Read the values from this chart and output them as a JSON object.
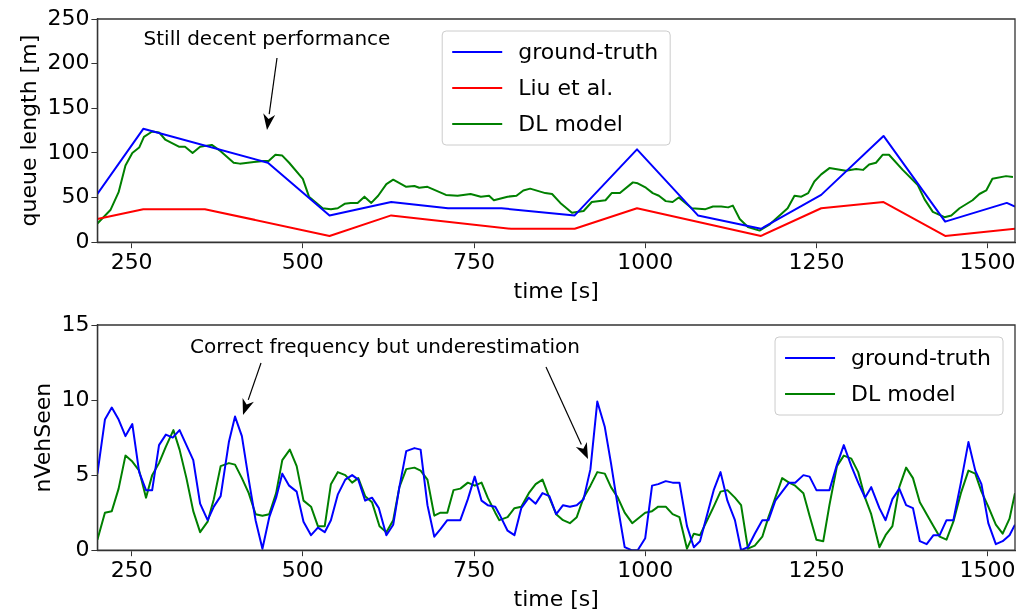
{
  "chart_data": [
    {
      "type": "line",
      "xlabel": "time [s]",
      "ylabel": "queue length [m]",
      "xlim": [
        200,
        1540
      ],
      "xticks": [
        250,
        500,
        750,
        1000,
        1250,
        1500
      ],
      "ylim": [
        0,
        250
      ],
      "yticks": [
        0,
        50,
        100,
        150,
        200,
        250
      ],
      "legend": "top",
      "grid": false,
      "annotations": [
        "Still decent performance"
      ],
      "series": [
        {
          "name": "ground-truth",
          "color": "#0000ff",
          "x": [
            200,
            267,
            449,
            539,
            629,
            712,
            790,
            897,
            988,
            1077,
            1169,
            1257,
            1348,
            1438,
            1528,
            1540
          ],
          "values": [
            54,
            127,
            89,
            30,
            45,
            38,
            38,
            30,
            104,
            30,
            15,
            53,
            119,
            23,
            44,
            40
          ]
        },
        {
          "name": "Liu et al.",
          "color": "#ff0000",
          "x": [
            200,
            267,
            357,
            539,
            629,
            804,
            897,
            988,
            1169,
            1257,
            1348,
            1438,
            1540
          ],
          "values": [
            26,
            37,
            37,
            7,
            30,
            15,
            15,
            38,
            7,
            38,
            45,
            7,
            15
          ]
        },
        {
          "name": "DL model",
          "color": "#008000",
          "x": [
            200,
            219,
            231,
            241,
            251,
            261,
            268,
            280,
            290,
            299,
            319,
            328,
            339,
            350,
            367,
            380,
            399,
            408,
            443,
            450,
            460,
            470,
            480,
            500,
            509,
            529,
            541,
            551,
            561,
            570,
            580,
            590,
            600,
            610,
            622,
            632,
            651,
            663,
            670,
            682,
            709,
            726,
            745,
            760,
            772,
            779,
            799,
            812,
            822,
            832,
            854,
            864,
            876,
            893,
            910,
            922,
            942,
            951,
            963,
            982,
            989,
            1001,
            1011,
            1020,
            1030,
            1040,
            1049,
            1068,
            1088,
            1099,
            1111,
            1121,
            1128,
            1138,
            1150,
            1167,
            1182,
            1208,
            1218,
            1228,
            1238,
            1247,
            1257,
            1269,
            1293,
            1308,
            1318,
            1327,
            1337,
            1347,
            1356,
            1376,
            1398,
            1408,
            1420,
            1437,
            1447,
            1459,
            1478,
            1488,
            1498,
            1507,
            1527,
            1537
          ],
          "values": [
            21,
            36,
            56,
            86,
            100,
            106,
            118,
            124,
            123,
            115,
            107,
            107,
            100,
            107,
            109,
            102,
            89,
            88,
            91,
            91,
            98,
            97,
            89,
            71,
            51,
            38,
            37,
            38,
            43,
            44,
            44,
            51,
            44,
            52,
            65,
            70,
            62,
            63,
            61,
            62,
            53,
            52,
            54,
            51,
            52,
            47,
            51,
            52,
            58,
            60,
            55,
            54,
            44,
            33,
            35,
            45,
            47,
            55,
            55,
            67,
            66,
            61,
            55,
            52,
            46,
            45,
            50,
            38,
            37,
            40,
            40,
            39,
            41,
            26,
            17,
            13,
            20,
            38,
            52,
            51,
            55,
            68,
            76,
            83,
            80,
            82,
            81,
            87,
            89,
            98,
            98,
            81,
            64,
            48,
            34,
            28,
            30,
            38,
            47,
            54,
            58,
            71,
            74,
            73
          ]
        }
      ]
    },
    {
      "type": "line",
      "xlabel": "time [s]",
      "ylabel": "nVehSeen",
      "xlim": [
        200,
        1540
      ],
      "xticks": [
        250,
        500,
        750,
        1000,
        1250,
        1500
      ],
      "ylim": [
        0,
        15
      ],
      "yticks": [
        0,
        5,
        10,
        15
      ],
      "legend": "top right",
      "grid": false,
      "annotations": [
        "Correct frequency but underestimation"
      ],
      "series": [
        {
          "name": "ground-truth",
          "color": "#0000ff",
          "x": [
            200,
            211,
            221,
            231,
            241,
            251,
            261,
            271,
            280,
            290,
            300,
            310,
            320,
            330,
            340,
            350,
            361,
            370,
            380,
            392,
            401,
            411,
            421,
            431,
            441,
            451,
            461,
            470,
            480,
            491,
            501,
            512,
            522,
            532,
            541,
            551,
            562,
            572,
            581,
            591,
            601,
            611,
            622,
            632,
            641,
            651,
            663,
            672,
            682,
            692,
            701,
            711,
            730,
            741,
            751,
            761,
            770,
            781,
            787,
            799,
            809,
            819,
            830,
            840,
            850,
            860,
            870,
            880,
            890,
            900,
            910,
            920,
            930,
            941,
            950,
            960,
            970,
            980,
            989,
            1000,
            1010,
            1019,
            1030,
            1040,
            1050,
            1061,
            1071,
            1080,
            1100,
            1110,
            1120,
            1131,
            1140,
            1150,
            1160,
            1171,
            1180,
            1190,
            1200,
            1210,
            1219,
            1231,
            1240,
            1250,
            1269,
            1280,
            1290,
            1301,
            1311,
            1321,
            1330,
            1342,
            1351,
            1361,
            1371,
            1381,
            1391,
            1401,
            1411,
            1421,
            1430,
            1440,
            1450,
            1461,
            1472,
            1482,
            1491,
            1501,
            1512,
            1522,
            1532,
            1540
          ],
          "values": [
            5.1,
            8.7,
            9.5,
            8.7,
            7.6,
            8.4,
            5.2,
            4.0,
            4.0,
            7.0,
            7.7,
            7.5,
            8.0,
            7.0,
            6.0,
            3.1,
            2.0,
            2.9,
            3.6,
            7.2,
            8.9,
            7.6,
            4.7,
            2.0,
            0.1,
            2.2,
            3.5,
            5.1,
            4.3,
            3.9,
            1.9,
            1.0,
            1.5,
            1.2,
            2.0,
            3.7,
            4.7,
            5.0,
            4.7,
            3.3,
            3.5,
            2.8,
            1.0,
            1.7,
            4.2,
            6.6,
            6.8,
            6.7,
            3.0,
            0.9,
            1.4,
            2.0,
            2.0,
            3.4,
            4.9,
            3.3,
            3.0,
            2.9,
            2.4,
            1.3,
            1.0,
            2.8,
            3.5,
            3.1,
            3.8,
            3.6,
            2.4,
            3.0,
            2.9,
            3.0,
            3.4,
            5.4,
            9.9,
            8.2,
            5.8,
            2.9,
            0.2,
            0,
            0,
            0.8,
            4.3,
            4.4,
            4.6,
            4.5,
            4.5,
            1.6,
            0.2,
            0.6,
            4.0,
            5.2,
            3.3,
            2.0,
            0,
            0.2,
            1.1,
            2.0,
            2.0,
            3.3,
            3.9,
            4.5,
            4.5,
            5.0,
            4.9,
            4.0,
            4.0,
            5.7,
            7.0,
            5.6,
            4.5,
            3.5,
            4.2,
            2.8,
            2.0,
            3.4,
            4.1,
            3.0,
            2.8,
            0.6,
            0.4,
            1.0,
            1.0,
            2.0,
            2.0,
            4.5,
            7.2,
            5.3,
            4.4,
            1.8,
            0.4,
            0.6,
            1.0,
            1.7
          ]
        },
        {
          "name": "DL model",
          "color": "#008000",
          "x": [
            200,
            211,
            221,
            231,
            241,
            251,
            261,
            271,
            280,
            290,
            300,
            311,
            320,
            330,
            340,
            350,
            361,
            370,
            380,
            392,
            401,
            411,
            421,
            431,
            441,
            451,
            461,
            470,
            481,
            491,
            501,
            512,
            522,
            532,
            541,
            551,
            562,
            572,
            581,
            591,
            601,
            612,
            622,
            632,
            641,
            651,
            663,
            672,
            682,
            692,
            701,
            711,
            720,
            730,
            741,
            751,
            761,
            770,
            781,
            787,
            799,
            809,
            819,
            830,
            840,
            850,
            860,
            870,
            880,
            890,
            900,
            910,
            920,
            930,
            941,
            950,
            960,
            970,
            981,
            1000,
            1010,
            1019,
            1030,
            1040,
            1050,
            1061,
            1071,
            1080,
            1100,
            1110,
            1120,
            1131,
            1140,
            1150,
            1160,
            1171,
            1180,
            1190,
            1200,
            1210,
            1219,
            1231,
            1240,
            1250,
            1260,
            1269,
            1280,
            1290,
            1301,
            1311,
            1321,
            1330,
            1342,
            1351,
            1361,
            1371,
            1381,
            1391,
            1401,
            1411,
            1421,
            1430,
            1440,
            1450,
            1461,
            1472,
            1482,
            1491,
            1501,
            1512,
            1522,
            1532,
            1540
          ],
          "values": [
            0.7,
            2.5,
            2.6,
            4.1,
            6.3,
            5.9,
            5.3,
            3.5,
            5.0,
            5.8,
            6.9,
            8.0,
            6.7,
            4.8,
            2.6,
            1.2,
            1.9,
            3.4,
            5.6,
            5.8,
            5.7,
            4.8,
            3.8,
            2.4,
            2.3,
            2.4,
            3.8,
            6.0,
            6.7,
            5.6,
            3.3,
            2.9,
            1.6,
            1.6,
            4.4,
            5.2,
            5.0,
            4.5,
            4.8,
            3.6,
            3.2,
            1.6,
            1.2,
            2.0,
            4.2,
            5.4,
            5.5,
            5.3,
            4.7,
            2.3,
            2.5,
            2.5,
            4.0,
            4.1,
            4.5,
            4.3,
            4.5,
            3.5,
            2.5,
            2.0,
            2.2,
            2.8,
            2.9,
            3.8,
            4.4,
            4.7,
            3.5,
            2.4,
            2.0,
            1.8,
            2.2,
            3.5,
            4.3,
            5.2,
            5.1,
            4.2,
            3.5,
            2.5,
            1.8,
            2.5,
            2.6,
            2.9,
            2.9,
            2.4,
            2.2,
            0.1,
            1.1,
            1.0,
            2.9,
            3.9,
            4.0,
            3.5,
            3.0,
            0.1,
            0.3,
            0.9,
            2.2,
            3.5,
            4.8,
            4.5,
            4.3,
            3.8,
            2.3,
            0.7,
            0.6,
            3.0,
            5.6,
            6.3,
            6.1,
            5.2,
            3.5,
            2.4,
            0.2,
            1.0,
            1.6,
            4.2,
            5.5,
            4.8,
            3.2,
            2.4,
            1.6,
            0.9,
            0.7,
            1.9,
            3.8,
            5.3,
            5.1,
            3.9,
            2.9,
            1.7,
            1.1,
            2.1,
            3.8
          ]
        }
      ]
    }
  ]
}
